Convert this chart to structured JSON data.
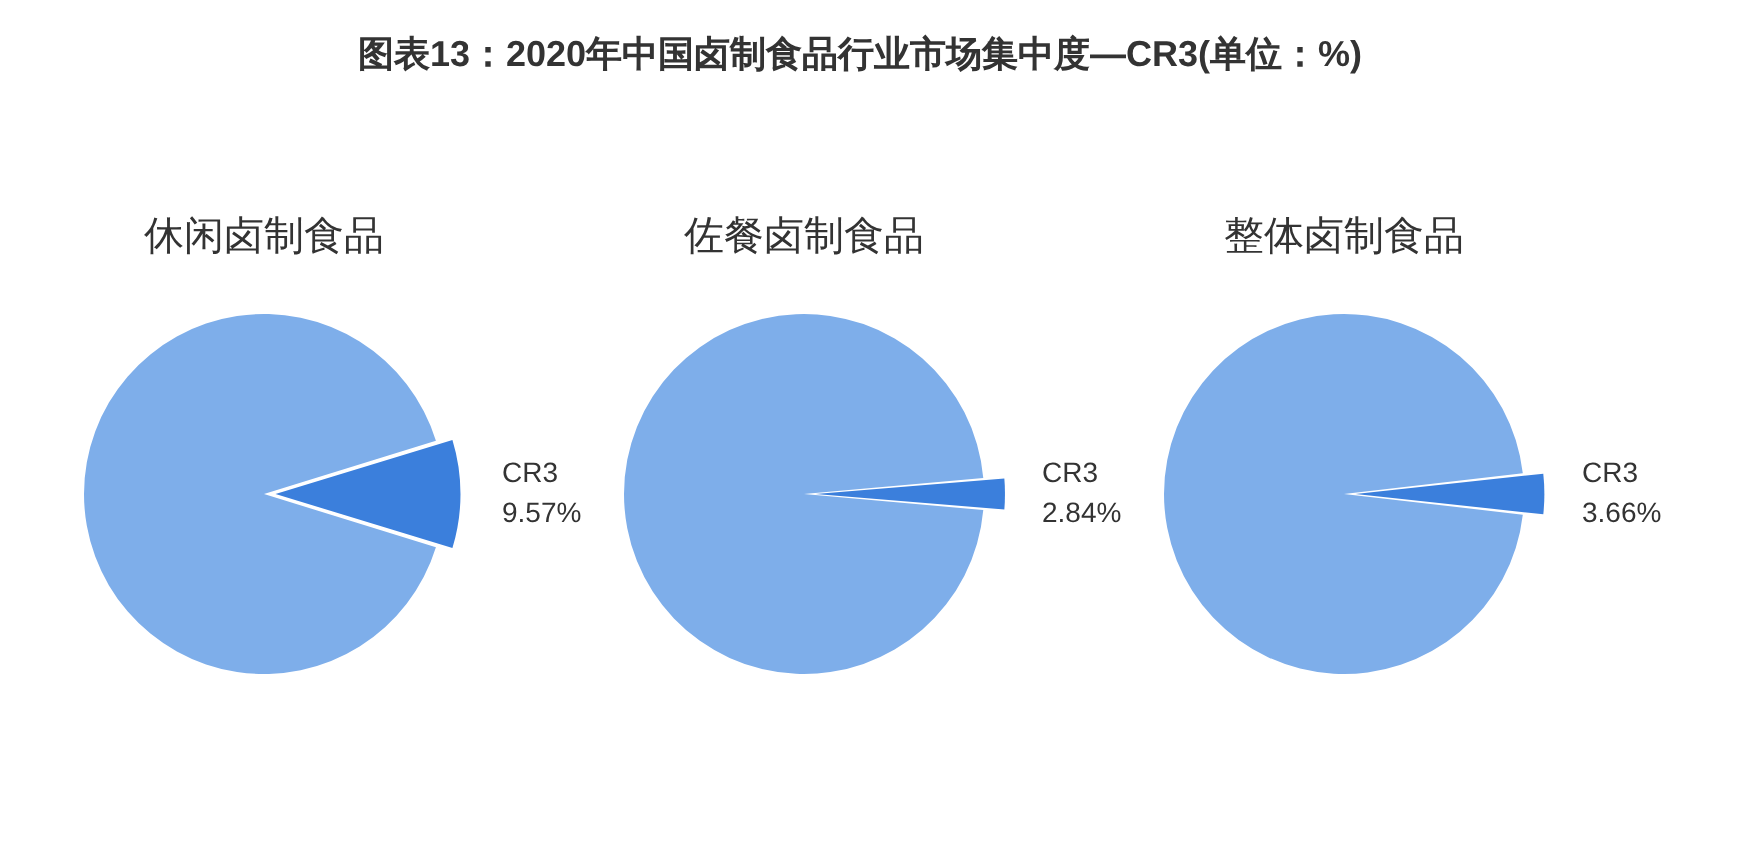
{
  "chart_data": [
    {
      "type": "other",
      "title": "图表13：2020年中国卤制食品行业市场集中度—CR3(单位：%)"
    },
    {
      "type": "pie",
      "title": "休闲卤制食品",
      "categories": [
        "CR3",
        null
      ],
      "values": [
        9.57,
        90.43
      ],
      "colors": [
        "#3b7fdc",
        "#7eaeea"
      ],
      "value_labels": [
        "9.57%",
        null
      ]
    },
    {
      "type": "pie",
      "title": "佐餐卤制食品",
      "categories": [
        "CR3",
        null
      ],
      "values": [
        2.84,
        97.16
      ],
      "colors": [
        "#3b7fdc",
        "#7eaeea"
      ],
      "value_labels": [
        "2.84%",
        null
      ]
    },
    {
      "type": "pie",
      "title": "整体卤制食品",
      "categories": [
        "CR3",
        null
      ],
      "values": [
        3.66,
        96.34
      ],
      "colors": [
        "#3b7fdc",
        "#7eaeea"
      ],
      "value_labels": [
        "3.66%",
        null
      ]
    }
  ]
}
